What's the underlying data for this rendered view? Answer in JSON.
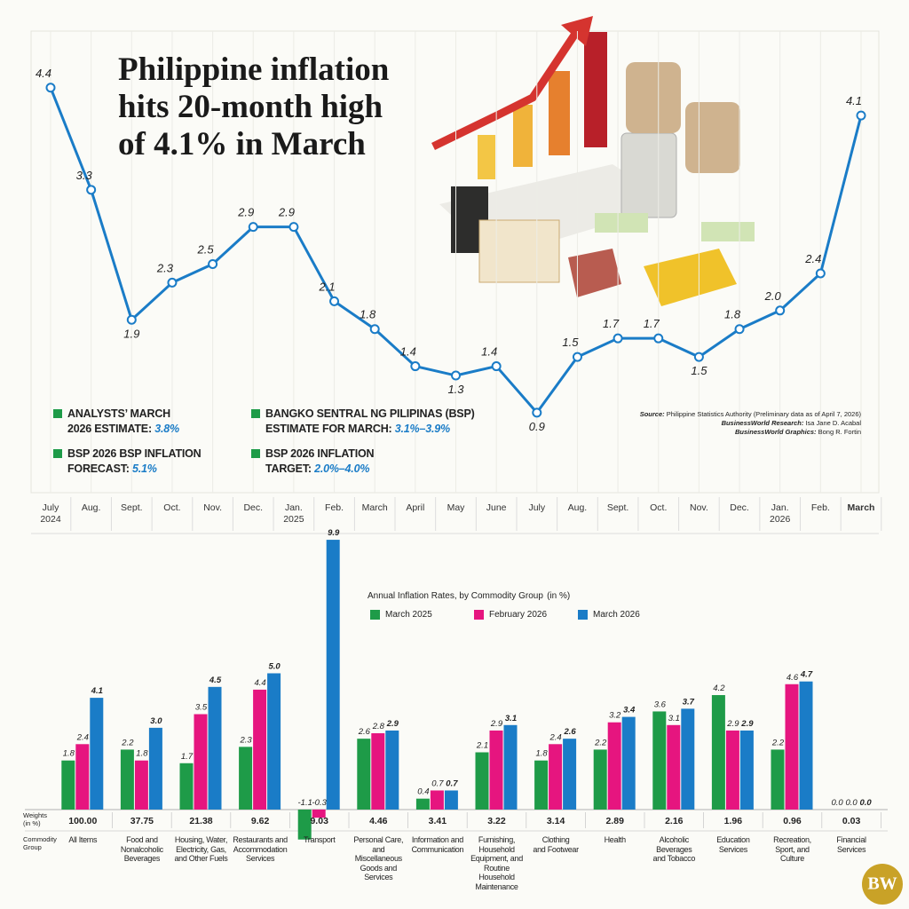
{
  "chart_data": [
    {
      "type": "line",
      "title": "Philippine inflation\nhits 20-month high\nof 4.1% in March",
      "categories": [
        "July\n2024",
        "Aug.",
        "Sept.",
        "Oct.",
        "Nov.",
        "Dec.",
        "Jan.\n2025",
        "Feb.",
        "March",
        "April",
        "May",
        "June",
        "July",
        "Aug.",
        "Sept.",
        "Oct.",
        "Nov.",
        "Dec.",
        "Jan.\n2026",
        "Feb.",
        "March"
      ],
      "values": [
        4.4,
        3.3,
        1.9,
        2.3,
        2.5,
        2.9,
        2.9,
        2.1,
        1.8,
        1.4,
        1.3,
        1.4,
        0.9,
        1.5,
        1.7,
        1.7,
        1.5,
        1.8,
        2.0,
        2.4,
        4.1
      ],
      "value_labels": [
        "4.4",
        "3.3",
        "1.9",
        "2.3",
        "2.5",
        "2.9",
        "2.9",
        "2.1",
        "1.8",
        "1.4",
        "1.3",
        "1.4",
        "0.9",
        "1.5",
        "1.7",
        "1.7",
        "1.5",
        "1.8",
        "2.0",
        "2.4",
        "4.1"
      ],
      "color": "#1a7cc7",
      "ylim": [
        0,
        5
      ]
    },
    {
      "type": "bar",
      "title": "Annual Inflation Rates, by Commodity Group",
      "unit": "(in %)",
      "categories": [
        "All Items",
        "Food and\nNonalcoholic\nBeverages",
        "Housing, Water,\nElectricity, Gas,\nand Other Fuels",
        "Restaurants and\nAccommodation\nServices",
        "Transport",
        "Personal Care,\nand Miscellaneous\nGoods and\nServices",
        "Information and\nCommunication",
        "Furnishing,\nHousehold\nEquipment, and\nRoutine Household\nMaintenance",
        "Clothing\nand Footwear",
        "Health",
        "Alcoholic\nBeverages\nand Tobacco",
        "Education\nServices",
        "Recreation,\nSport, and\nCulture",
        "Financial\nServices"
      ],
      "weights_label": "Weights\n(in %)",
      "categories_label": "Commodity\nGroup",
      "weights": [
        "100.00",
        "37.75",
        "21.38",
        "9.62",
        "9.03",
        "4.46",
        "3.41",
        "3.22",
        "3.14",
        "2.89",
        "2.16",
        "1.96",
        "0.96",
        "0.03"
      ],
      "series": [
        {
          "name": "March 2025",
          "color": "#1e9b48",
          "values": [
            1.8,
            2.2,
            1.7,
            2.3,
            -1.1,
            2.6,
            0.4,
            2.1,
            1.8,
            2.2,
            3.6,
            4.2,
            2.2,
            0
          ],
          "value_labels": [
            "1.8",
            "2.2",
            "1.7",
            "2.3",
            "-1.1",
            "2.6",
            "0.4",
            "2.1",
            "1.8",
            "2.2",
            "3.6",
            "4.2",
            "2.2",
            "0.0"
          ]
        },
        {
          "name": "February 2026",
          "color": "#e6157f",
          "values": [
            2.4,
            1.8,
            3.5,
            4.4,
            -0.3,
            2.8,
            0.7,
            2.9,
            2.4,
            3.2,
            3.1,
            2.9,
            4.6,
            0
          ],
          "value_labels": [
            "2.4",
            "1.8",
            "3.5",
            "4.4",
            "-0.3",
            "2.8",
            "0.7",
            "2.9",
            "2.4",
            "3.2",
            "3.1",
            "2.9",
            "4.6",
            "0.0"
          ]
        },
        {
          "name": "March 2026",
          "color": "#1a7cc7",
          "values": [
            4.1,
            3.0,
            4.5,
            5.0,
            9.9,
            2.9,
            0.7,
            3.1,
            2.6,
            3.4,
            3.7,
            2.9,
            4.7,
            0
          ],
          "value_labels": [
            "4.1",
            "3.0",
            "4.5",
            "5.0",
            "9.9",
            "2.9",
            "0.7",
            "3.1",
            "2.6",
            "3.4",
            "3.7",
            "2.9",
            "4.7",
            "0.0"
          ]
        }
      ],
      "ylim": [
        -1.5,
        10
      ]
    }
  ],
  "notes": [
    {
      "label": "ANALYSTS’ MARCH\n2026 ESTIMATE: ",
      "value": "3.8%"
    },
    {
      "label": "BSP 2026 BSP INFLATION\nFORECAST: ",
      "value": "5.1%"
    },
    {
      "label": "BANGKO SENTRAL NG PILIPINAS (BSP)\nESTIMATE FOR MARCH: ",
      "value": "3.1%–3.9%"
    },
    {
      "label": "BSP 2026 INFLATION\nTARGET: ",
      "value": "2.0%–4.0%"
    }
  ],
  "credits": [
    {
      "label": "Source:",
      "text": " Philippine Statistics Authority (Preliminary data as of April 7, 2026)"
    },
    {
      "label": "BusinessWorld Research:",
      "text": " Isa Jane D. Acabal"
    },
    {
      "label": "BusinessWorld Graphics:",
      "text": " Bong R. Fortin"
    }
  ],
  "logo": "BW"
}
